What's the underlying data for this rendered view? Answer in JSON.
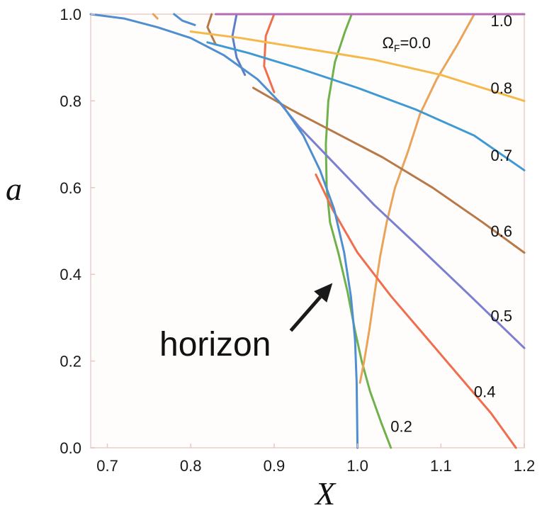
{
  "chart_data": {
    "type": "line",
    "title": "",
    "xlabel": "X",
    "ylabel": "a",
    "xlim": [
      0.68,
      1.2
    ],
    "ylim": [
      0.0,
      1.0
    ],
    "xticks": [
      "0.7",
      "0.8",
      "0.9",
      "1.0",
      "1.1",
      "1.2"
    ],
    "yticks": [
      "0.0",
      "0.2",
      "0.4",
      "0.6",
      "0.8",
      "1.0"
    ],
    "grid": false,
    "horizon": {
      "name": "horizon",
      "color": "#4f8fcf",
      "points": [
        [
          0.68,
          1.0
        ],
        [
          0.72,
          0.99
        ],
        [
          0.76,
          0.97
        ],
        [
          0.8,
          0.945
        ],
        [
          0.84,
          0.905
        ],
        [
          0.88,
          0.85
        ],
        [
          0.91,
          0.79
        ],
        [
          0.935,
          0.72
        ],
        [
          0.955,
          0.64
        ],
        [
          0.972,
          0.55
        ],
        [
          0.984,
          0.45
        ],
        [
          0.992,
          0.35
        ],
        [
          0.997,
          0.25
        ],
        [
          0.999,
          0.15
        ],
        [
          1.0,
          0.0
        ]
      ]
    },
    "series": [
      {
        "name": "0.0",
        "color": "#6fb14a",
        "points": [
          [
            0.993,
            1.0
          ],
          [
            0.985,
            0.96
          ],
          [
            0.973,
            0.89
          ],
          [
            0.965,
            0.8
          ],
          [
            0.962,
            0.7
          ],
          [
            0.963,
            0.6
          ],
          [
            0.967,
            0.52
          ],
          [
            0.977,
            0.45
          ],
          [
            0.988,
            0.36
          ],
          [
            0.997,
            0.27
          ],
          [
            1.005,
            0.2
          ],
          [
            1.015,
            0.13
          ],
          [
            1.028,
            0.06
          ],
          [
            1.04,
            0.0
          ]
        ]
      },
      {
        "name": "0.2",
        "color": "#e9a45a",
        "points": [
          [
            1.14,
            1.0
          ],
          [
            1.12,
            0.93
          ],
          [
            1.095,
            0.85
          ],
          [
            1.075,
            0.77
          ],
          [
            1.06,
            0.68
          ],
          [
            1.045,
            0.6
          ],
          [
            1.035,
            0.52
          ],
          [
            1.027,
            0.44
          ],
          [
            1.02,
            0.35
          ],
          [
            1.014,
            0.27
          ],
          [
            1.008,
            0.2
          ],
          [
            1.003,
            0.15
          ]
        ]
      },
      {
        "name": "0.4",
        "color": "#ef6e4e",
        "points": [
          [
            0.95,
            0.63
          ],
          [
            0.97,
            0.55
          ],
          [
            1.0,
            0.45
          ],
          [
            1.04,
            0.35
          ],
          [
            1.08,
            0.26
          ],
          [
            1.12,
            0.17
          ],
          [
            1.16,
            0.08
          ],
          [
            1.19,
            0.0
          ]
        ]
      },
      {
        "name": "0.5",
        "color": "#7a7fd0",
        "points": [
          [
            0.905,
            0.8
          ],
          [
            0.93,
            0.74
          ],
          [
            0.97,
            0.66
          ],
          [
            1.02,
            0.56
          ],
          [
            1.07,
            0.47
          ],
          [
            1.13,
            0.36
          ],
          [
            1.2,
            0.23
          ]
        ]
      },
      {
        "name": "0.6",
        "color": "#b87948",
        "points": [
          [
            0.875,
            0.83
          ],
          [
            0.92,
            0.78
          ],
          [
            0.97,
            0.73
          ],
          [
            1.03,
            0.67
          ],
          [
            1.09,
            0.6
          ],
          [
            1.15,
            0.52
          ],
          [
            1.2,
            0.45
          ]
        ]
      },
      {
        "name": "0.7",
        "color": "#3f9ad3",
        "points": [
          [
            0.82,
            0.935
          ],
          [
            0.87,
            0.91
          ],
          [
            0.93,
            0.875
          ],
          [
            1.0,
            0.83
          ],
          [
            1.07,
            0.78
          ],
          [
            1.14,
            0.72
          ],
          [
            1.2,
            0.64
          ]
        ]
      },
      {
        "name": "0.8",
        "color": "#f5b84a",
        "points": [
          [
            0.8,
            0.96
          ],
          [
            0.86,
            0.945
          ],
          [
            0.94,
            0.92
          ],
          [
            1.02,
            0.895
          ],
          [
            1.1,
            0.86
          ],
          [
            1.2,
            0.8
          ]
        ]
      },
      {
        "name": "1.0",
        "color": "#b26db5",
        "points": [
          [
            0.83,
            1.0
          ],
          [
            1.2,
            1.0
          ]
        ]
      }
    ],
    "extra_stubs": [
      {
        "color": "#e9a45a",
        "points": [
          [
            0.755,
            1.0
          ],
          [
            0.76,
            0.99
          ]
        ]
      },
      {
        "color": "#4f8fcf",
        "points": [
          [
            0.78,
            1.0
          ],
          [
            0.79,
            0.985
          ],
          [
            0.805,
            0.975
          ]
        ]
      },
      {
        "color": "#b87948",
        "points": [
          [
            0.825,
            1.0
          ],
          [
            0.82,
            0.97
          ],
          [
            0.83,
            0.93
          ]
        ]
      },
      {
        "color": "#5a7fc8",
        "points": [
          [
            0.855,
            1.0
          ],
          [
            0.85,
            0.95
          ],
          [
            0.855,
            0.9
          ],
          [
            0.865,
            0.86
          ]
        ]
      },
      {
        "color": "#ef6e4e",
        "points": [
          [
            0.9,
            1.0
          ],
          [
            0.89,
            0.95
          ],
          [
            0.888,
            0.88
          ],
          [
            0.9,
            0.82
          ]
        ]
      }
    ],
    "curve_labels": [
      {
        "text": "1.0",
        "x": 1.18,
        "y": 0.985
      },
      {
        "text": "ΩF=0.0",
        "x": 1.05,
        "y": 0.935
      },
      {
        "text": "0.8",
        "x": 1.18,
        "y": 0.83
      },
      {
        "text": "0.7",
        "x": 1.18,
        "y": 0.675
      },
      {
        "text": "0.6",
        "x": 1.18,
        "y": 0.5
      },
      {
        "text": "0.5",
        "x": 1.18,
        "y": 0.305
      },
      {
        "text": "0.4",
        "x": 1.16,
        "y": 0.13
      },
      {
        "text": "0.2",
        "x": 1.06,
        "y": 0.05
      }
    ],
    "annotation": {
      "text": "horizon",
      "arrow_from": [
        0.92,
        0.27
      ],
      "arrow_to": [
        0.97,
        0.38
      ]
    }
  }
}
